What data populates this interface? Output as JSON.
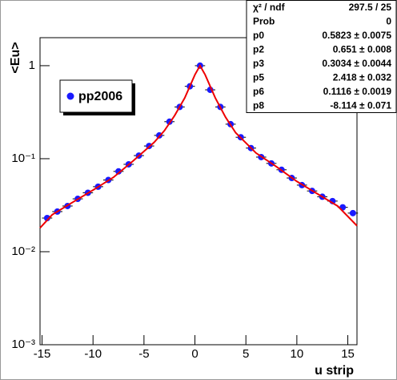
{
  "chart_data": {
    "type": "scatter",
    "xlabel": "u strip",
    "ylabel": "<Eu>",
    "xlim": [
      -15.2,
      15.9
    ],
    "ylim": [
      0.001,
      2
    ],
    "log_y": true,
    "xticks": [
      -15,
      -10,
      -5,
      0,
      5,
      10,
      15
    ],
    "yticks": [
      {
        "value": 0.001,
        "label": "10⁻³"
      },
      {
        "value": 0.01,
        "label": "10⁻²"
      },
      {
        "value": 0.1,
        "label": "10⁻¹"
      },
      {
        "value": 1,
        "label": "1"
      }
    ],
    "series": [
      {
        "name": "pp2006",
        "color": "#1a1aff",
        "x": [
          -14.5,
          -13.5,
          -12.5,
          -11.5,
          -10.5,
          -9.5,
          -8.5,
          -7.5,
          -6.5,
          -5.5,
          -4.5,
          -3.5,
          -2.5,
          -1.5,
          -0.5,
          0.5,
          1.5,
          2.5,
          3.5,
          4.5,
          5.5,
          6.5,
          7.5,
          8.5,
          9.5,
          10.5,
          11.5,
          12.5,
          13.5,
          14.5,
          15.5
        ],
        "values": [
          0.023,
          0.027,
          0.031,
          0.037,
          0.043,
          0.05,
          0.059,
          0.073,
          0.087,
          0.108,
          0.137,
          0.178,
          0.25,
          0.36,
          0.6,
          1.0,
          0.55,
          0.36,
          0.235,
          0.17,
          0.13,
          0.104,
          0.089,
          0.076,
          0.062,
          0.052,
          0.045,
          0.039,
          0.035,
          0.03,
          0.026
        ]
      },
      {
        "color": "#ee0000",
        "line": true,
        "x": [
          -15.2,
          -14,
          -12,
          -10,
          -8,
          -6,
          -4,
          -3,
          -2,
          -1,
          0,
          0.5,
          1,
          2,
          3,
          4,
          6,
          8,
          10,
          12,
          14,
          15.9
        ],
        "values": [
          0.018,
          0.025,
          0.034,
          0.046,
          0.063,
          0.096,
          0.15,
          0.2,
          0.29,
          0.45,
          0.8,
          1.0,
          0.8,
          0.45,
          0.28,
          0.19,
          0.115,
          0.082,
          0.057,
          0.042,
          0.031,
          0.019
        ]
      }
    ],
    "stats": [
      {
        "label": "χ² / ndf",
        "value": "297.5 / 25"
      },
      {
        "label": "Prob",
        "value": "0"
      },
      {
        "label": "p0",
        "value": "0.5823 ± 0.0075"
      },
      {
        "label": "p2",
        "value": "0.651 ± 0.008"
      },
      {
        "label": "p3",
        "value": "0.3034 ± 0.0044"
      },
      {
        "label": "p5",
        "value": "2.418 ± 0.032"
      },
      {
        "label": "p6",
        "value": "0.1116 ± 0.0019"
      },
      {
        "label": "p8",
        "value": "-8.114 ± 0.071"
      }
    ]
  }
}
